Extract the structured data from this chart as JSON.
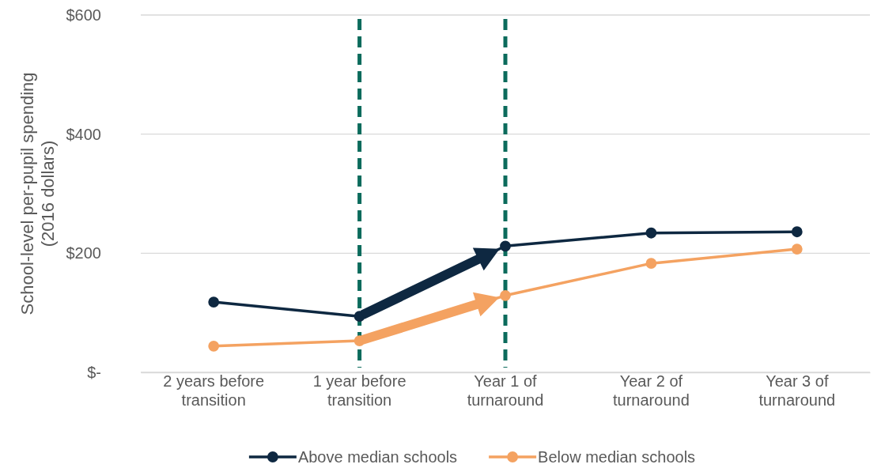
{
  "chart_data": {
    "type": "line",
    "ylabel": "School-level per-pupil spending (2016 dollars)",
    "categories": [
      "2 years before transition",
      "1 year before transition",
      "Year 1 of turnaround",
      "Year 2 of turnaround",
      "Year 3 of turnaround"
    ],
    "series": [
      {
        "name": "Above median schools",
        "color": "#0e2841",
        "values": [
          118,
          94,
          212,
          234,
          236
        ]
      },
      {
        "name": "Below median schools",
        "color": "#f4a261",
        "values": [
          44,
          53,
          129,
          183,
          207
        ]
      }
    ],
    "ylim": [
      0,
      600
    ],
    "yticks": [
      {
        "value": 0,
        "label": "$-"
      },
      {
        "value": 200,
        "label": "$200"
      },
      {
        "value": 400,
        "label": "$400"
      },
      {
        "value": 600,
        "label": "$600"
      }
    ],
    "grid": "y",
    "legend": "bottom",
    "marker": "circle",
    "line_style": "solid",
    "ref_lines": [
      {
        "axis": "x",
        "value": "1 year before transition",
        "color": "#0b6b5c",
        "line_style": "dashed"
      },
      {
        "axis": "x",
        "value": "Year 1 of turnaround",
        "color": "#0b6b5c",
        "line_style": "dashed"
      }
    ]
  }
}
